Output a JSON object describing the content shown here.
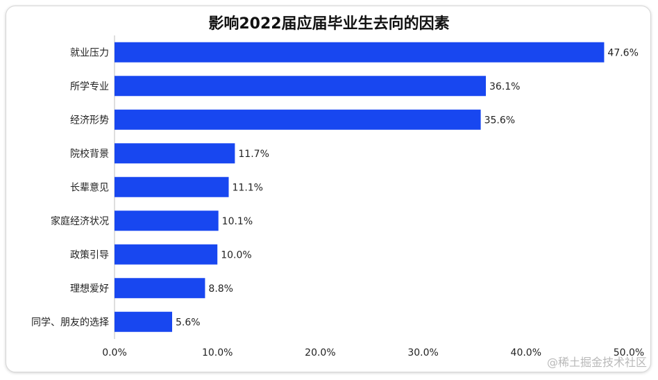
{
  "chart_data": {
    "type": "bar",
    "orientation": "horizontal",
    "title": "影响2022届应届毕业生去向的因素",
    "categories": [
      "就业压力",
      "所学专业",
      "经济形势",
      "院校背景",
      "长辈意见",
      "家庭经济状况",
      "政策引导",
      "理想爱好",
      "同学、朋友的选择"
    ],
    "values": [
      47.6,
      36.1,
      35.6,
      11.7,
      11.1,
      10.1,
      10.0,
      8.8,
      5.6
    ],
    "value_labels": [
      "47.6%",
      "36.1%",
      "35.6%",
      "11.7%",
      "11.1%",
      "10.1%",
      "10.0%",
      "8.8%",
      "5.6%"
    ],
    "xlim": [
      0,
      50
    ],
    "x_ticks": [
      0,
      10,
      20,
      30,
      40,
      50
    ],
    "x_tick_labels": [
      "0.0%",
      "10.0%",
      "20.0%",
      "30.0%",
      "40.0%",
      "50.0%"
    ],
    "xlabel": "",
    "ylabel": "",
    "grid": false,
    "bar_color": "#1847f0"
  },
  "watermark": "@稀土掘金技术社区"
}
